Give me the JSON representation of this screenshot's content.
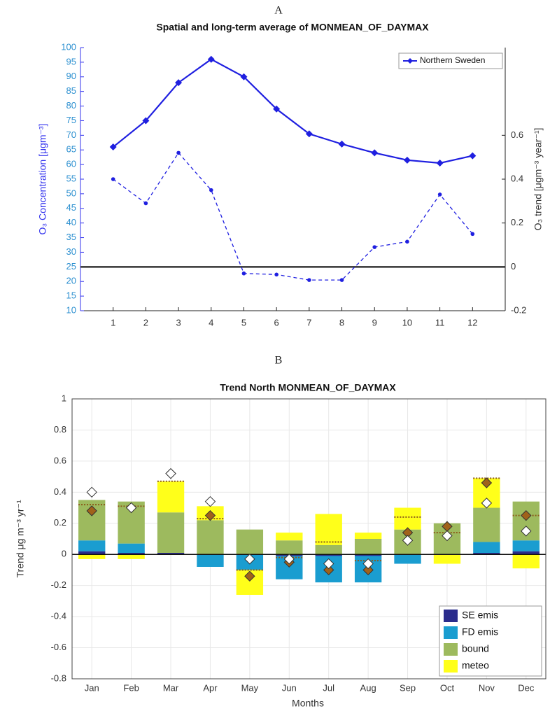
{
  "chart_data": [
    {
      "type": "line",
      "panel_label": "A",
      "title": "Spatial and long-term average of MONMEAN_OF_DAYMAX",
      "y_label": "O₃ Concentration [μgm⁻³]",
      "y2_label": "O₃ trend [μgm⁻³ year⁻¹]",
      "x": [
        1,
        2,
        3,
        4,
        5,
        6,
        7,
        8,
        9,
        10,
        11,
        12
      ],
      "xlim": [
        0,
        13
      ],
      "xticks": [
        1,
        2,
        3,
        4,
        5,
        6,
        7,
        8,
        9,
        10,
        11,
        12
      ],
      "ylim": [
        10,
        100
      ],
      "yticks": [
        10,
        15,
        20,
        25,
        30,
        35,
        40,
        45,
        50,
        55,
        60,
        65,
        70,
        75,
        80,
        85,
        90,
        95,
        100
      ],
      "y2lim": [
        -0.2,
        1.0
      ],
      "y2ticks": [
        -0.2,
        0,
        0.2,
        0.4,
        0.6
      ],
      "zero_line": true,
      "grid": false,
      "legend": "upper right",
      "series": [
        {
          "name": "Northern Sweden",
          "color": "#1f1fe0",
          "style": "solid",
          "values": [
            66,
            75,
            88,
            96,
            90,
            79,
            70.5,
            67,
            64,
            61.5,
            60.5,
            63
          ]
        },
        {
          "color": "#1f1fe0",
          "style": "dashed",
          "axis": "y2",
          "values": [
            0.4,
            0.29,
            0.52,
            0.35,
            -0.03,
            -0.035,
            -0.06,
            -0.06,
            0.09,
            0.115,
            0.33,
            0.15
          ]
        }
      ]
    },
    {
      "type": "bar",
      "panel_label": "B",
      "title": "Trend  North MONMEAN_OF_DAYMAX",
      "y_label": "Trend μg m⁻³ yr⁻¹",
      "x_label": "Months",
      "categories": [
        "Jan",
        "Feb",
        "Mar",
        "Apr",
        "May",
        "Jun",
        "Jul",
        "Aug",
        "Sep",
        "Oct",
        "Nov",
        "Dec"
      ],
      "ylim": [
        -0.8,
        1
      ],
      "yticks": [
        -0.8,
        -0.6,
        -0.4,
        -0.2,
        0,
        0.2,
        0.4,
        0.6,
        0.8,
        1
      ],
      "zero_line": true,
      "grid": true,
      "legend": "lower right",
      "series": [
        {
          "name": "SE emis",
          "color": "#2a2c8c",
          "kind": "stack",
          "values": [
            0.02,
            0.01,
            0.01,
            0,
            0,
            -0.01,
            -0.01,
            -0.01,
            0,
            0,
            0.01,
            0.02
          ]
        },
        {
          "name": "FD emis",
          "color": "#1a9dd0",
          "kind": "stack",
          "values": [
            0.07,
            0.06,
            0,
            -0.08,
            -0.1,
            -0.15,
            -0.17,
            -0.17,
            -0.06,
            0,
            0.07,
            0.07
          ]
        },
        {
          "name": "bound",
          "color": "#9dba5e",
          "kind": "stack",
          "values": [
            0.26,
            0.27,
            0.26,
            0.22,
            0.16,
            0.09,
            0.06,
            0.1,
            0.16,
            0.2,
            0.22,
            0.25
          ]
        },
        {
          "name": "meteo",
          "color": "#ffff1a",
          "kind": "stack",
          "values": [
            -0.03,
            -0.03,
            0.2,
            0.09,
            -0.16,
            0.05,
            0.2,
            0.04,
            0.14,
            -0.06,
            0.19,
            -0.09
          ]
        },
        {
          "color": "#8b5a1a",
          "kind": "level",
          "values": [
            0.32,
            0.31,
            0.47,
            0.23,
            -0.1,
            -0.02,
            0.08,
            -0.04,
            0.24,
            0.14,
            0.49,
            0.25
          ]
        },
        {
          "color": "#a0621a",
          "kind": "marker",
          "values": [
            0.28,
            0.3,
            0.52,
            0.25,
            -0.14,
            -0.05,
            -0.1,
            -0.1,
            0.14,
            0.18,
            0.46,
            0.25
          ]
        },
        {
          "color": "#ffffff",
          "kind": "marker",
          "values": [
            0.4,
            0.3,
            0.52,
            0.34,
            -0.03,
            -0.03,
            -0.06,
            -0.06,
            0.09,
            0.12,
            0.33,
            0.15
          ]
        }
      ]
    }
  ]
}
